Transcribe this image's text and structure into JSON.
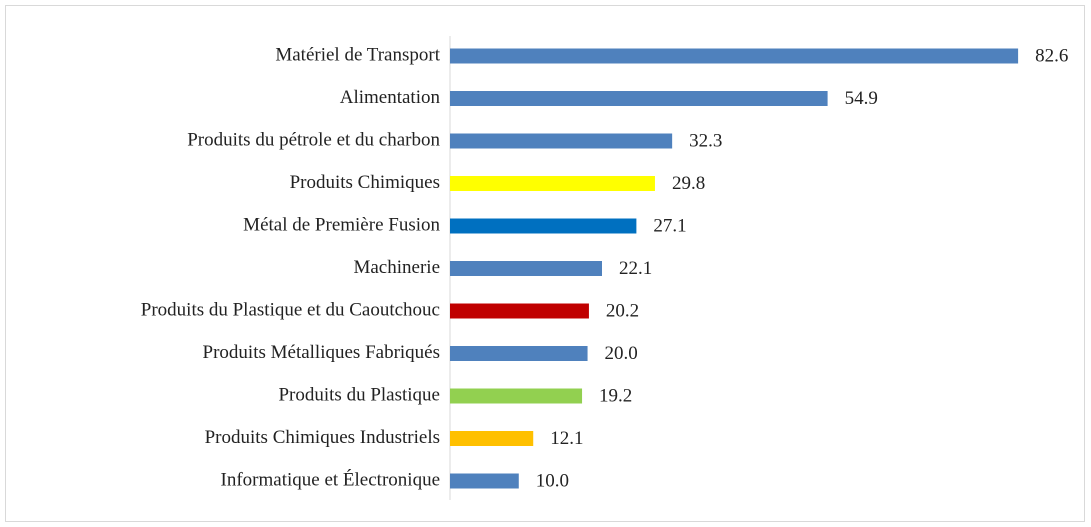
{
  "chart_data": {
    "type": "hbar",
    "categories": [
      "Matériel de Transport",
      "Alimentation",
      "Produits du pétrole et du charbon",
      "Produits Chimiques",
      "Métal de Première Fusion",
      "Machinerie",
      "Produits du Plastique et du Caoutchouc",
      "Produits Métalliques Fabriqués",
      "Produits du Plastique",
      "Produits Chimiques Industriels",
      "Informatique et Électronique"
    ],
    "values": [
      82.6,
      54.9,
      32.3,
      29.8,
      27.1,
      22.1,
      20.2,
      20,
      19.2,
      12.1,
      10
    ],
    "value_labels": [
      "82.6",
      "54.9",
      "32.3",
      "29.8",
      "27.1",
      "22.1",
      "20.2",
      "20.0",
      "19.2",
      "12.1",
      "10.0"
    ],
    "colors": [
      "#4f81bd",
      "#4f81bd",
      "#4f81bd",
      "#ffff00",
      "#0070c0",
      "#4f81bd",
      "#c00000",
      "#4f81bd",
      "#92d050",
      "#ffc000",
      "#4f81bd"
    ],
    "xlim": [
      0,
      90
    ]
  }
}
